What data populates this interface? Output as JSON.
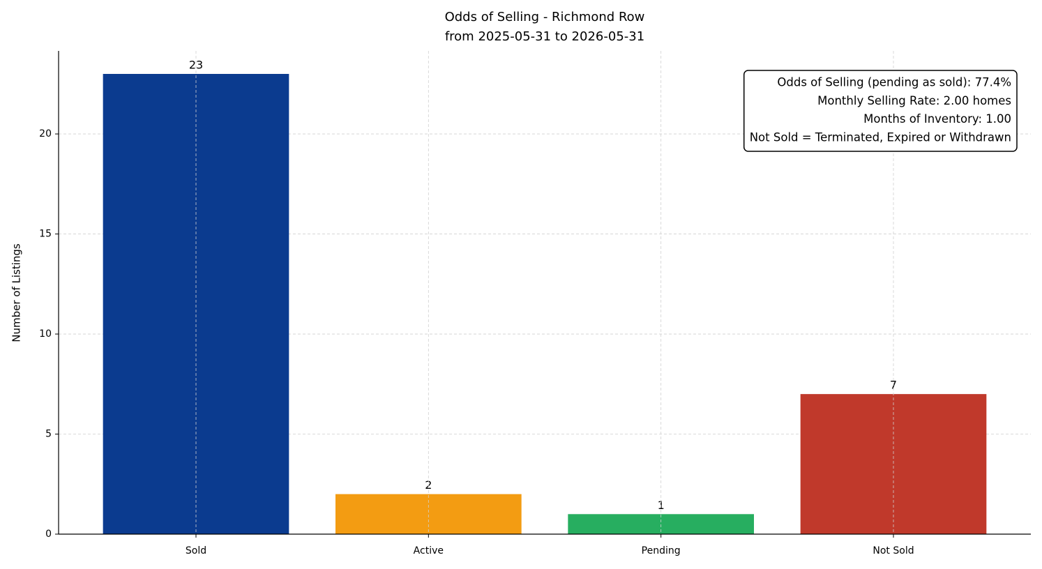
{
  "chart_data": {
    "type": "bar",
    "title": "Odds of Selling - Richmond Row",
    "subtitle": "from 2025-05-31 to 2026-05-31",
    "y_label": "Number of Listings",
    "categories": [
      "Sold",
      "Active",
      "Pending",
      "Not Sold"
    ],
    "values": [
      23,
      2,
      1,
      7
    ],
    "colors": [
      "#0b3b8f",
      "#f39c12",
      "#27ae60",
      "#c0392b"
    ],
    "ylim": [
      0,
      24.15
    ],
    "yticks": [
      0,
      5,
      10,
      15,
      20
    ],
    "grid": true,
    "annotation_lines": [
      "Odds of Selling (pending as sold): 77.4%",
      "Monthly Selling Rate: 2.00 homes",
      "Months of Inventory: 1.00",
      "Not Sold = Terminated, Expired or Withdrawn"
    ]
  }
}
